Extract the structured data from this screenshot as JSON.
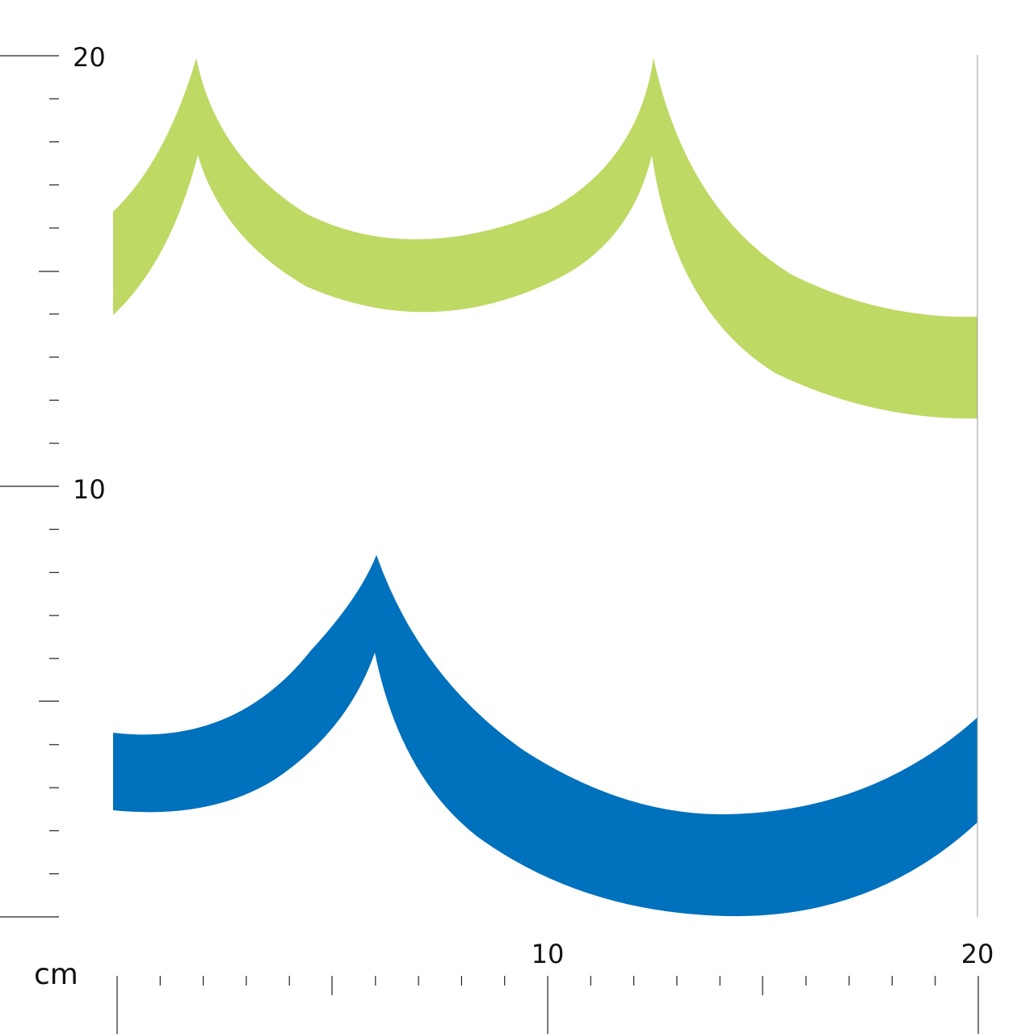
{
  "ruler": {
    "unit": "cm",
    "left_labels": {
      "top": "20",
      "middle": "10"
    },
    "bottom_labels": {
      "middle": "10",
      "right": "20"
    }
  },
  "colors": {
    "green_band": "#bed964",
    "blue_band": "#0071bc",
    "ruler": "#222222",
    "background": "#ffffff"
  }
}
